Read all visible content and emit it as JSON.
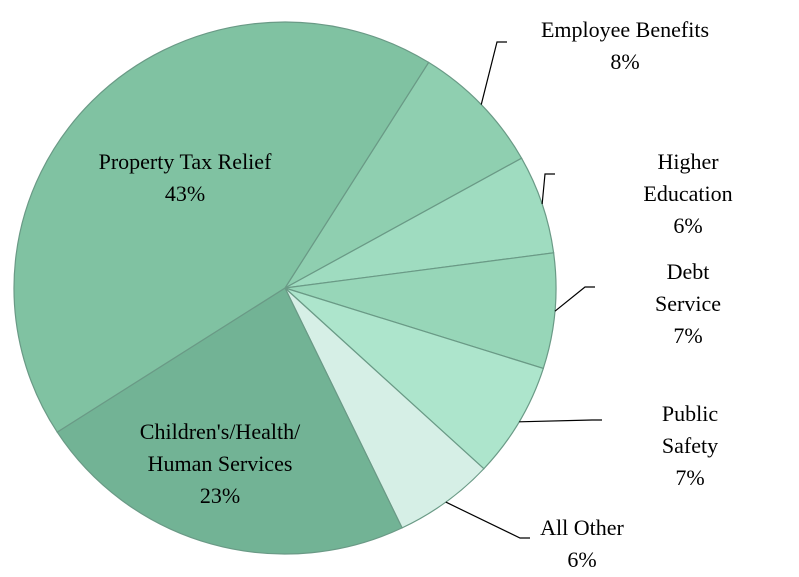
{
  "chart_data": {
    "type": "pie",
    "categories": [
      "Employee Benefits",
      "Higher Education",
      "Debt Service",
      "Public Safety",
      "All Other",
      "Children's/Health/\nHuman Services",
      "Property Tax Relief"
    ],
    "values": [
      8,
      6,
      7,
      7,
      6,
      23,
      43
    ],
    "value_labels": [
      "8%",
      "6%",
      "7%",
      "7%",
      "6%",
      "23%",
      "43%"
    ],
    "colors": [
      "#8fcfb0",
      "#9fdcc0",
      "#97d6b8",
      "#ade5cc",
      "#d6efe6",
      "#72b395",
      "#80c2a2"
    ]
  }
}
